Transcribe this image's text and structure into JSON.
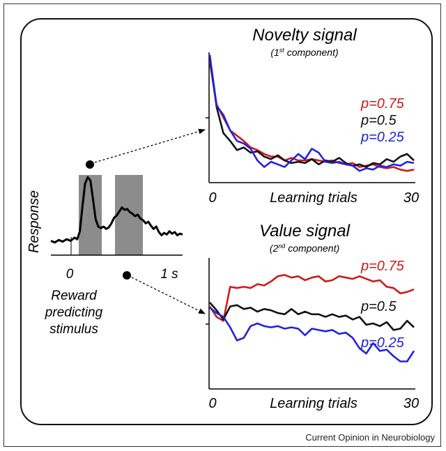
{
  "credit": "Current Opinion in Neurobiology",
  "left_plot": {
    "ylabel": "Response",
    "x_tick_start": "0",
    "x_tick_end": "1 s",
    "caption_lines": [
      "Reward",
      "predicting",
      "stimulus"
    ],
    "shade_color": "#8c8c8c",
    "trace": [
      [
        0.0,
        0.18
      ],
      [
        0.03,
        0.16
      ],
      [
        0.06,
        0.19
      ],
      [
        0.09,
        0.17
      ],
      [
        0.12,
        0.2
      ],
      [
        0.15,
        0.18
      ],
      [
        0.18,
        0.22
      ],
      [
        0.2,
        0.2
      ],
      [
        0.22,
        0.3
      ],
      [
        0.24,
        0.62
      ],
      [
        0.26,
        0.9
      ],
      [
        0.28,
        0.98
      ],
      [
        0.3,
        0.94
      ],
      [
        0.32,
        0.7
      ],
      [
        0.34,
        0.45
      ],
      [
        0.36,
        0.36
      ],
      [
        0.38,
        0.34
      ],
      [
        0.4,
        0.36
      ],
      [
        0.42,
        0.33
      ],
      [
        0.44,
        0.35
      ],
      [
        0.46,
        0.4
      ],
      [
        0.48,
        0.47
      ],
      [
        0.5,
        0.5
      ],
      [
        0.52,
        0.55
      ],
      [
        0.54,
        0.6
      ],
      [
        0.56,
        0.57
      ],
      [
        0.58,
        0.58
      ],
      [
        0.6,
        0.54
      ],
      [
        0.62,
        0.52
      ],
      [
        0.64,
        0.49
      ],
      [
        0.66,
        0.51
      ],
      [
        0.68,
        0.46
      ],
      [
        0.7,
        0.44
      ],
      [
        0.72,
        0.4
      ],
      [
        0.74,
        0.42
      ],
      [
        0.76,
        0.37
      ],
      [
        0.78,
        0.33
      ],
      [
        0.8,
        0.36
      ],
      [
        0.82,
        0.29
      ],
      [
        0.84,
        0.25
      ],
      [
        0.86,
        0.28
      ],
      [
        0.88,
        0.26
      ],
      [
        0.9,
        0.3
      ],
      [
        0.92,
        0.27
      ],
      [
        0.94,
        0.29
      ],
      [
        0.96,
        0.25
      ],
      [
        0.98,
        0.27
      ],
      [
        1.0,
        0.26
      ]
    ]
  },
  "novelty": {
    "title": "Novelty signal",
    "subtitle": "(1st component)",
    "x_tick_start": "0",
    "x_tick_end": "30",
    "xlabel": "Learning trials",
    "ylim": [
      0,
      1
    ],
    "series": [
      {
        "name": "p=0.75",
        "color": "#cc1b1b",
        "values": [
          0.93,
          0.6,
          0.5,
          0.4,
          0.36,
          0.32,
          0.27,
          0.25,
          0.22,
          0.2,
          0.2,
          0.17,
          0.19,
          0.17,
          0.17,
          0.18,
          0.17,
          0.16,
          0.17,
          0.15,
          0.14,
          0.15,
          0.12,
          0.13,
          0.14,
          0.12,
          0.11,
          0.12,
          0.1,
          0.09,
          0.1
        ]
      },
      {
        "name": "p=0.5",
        "color": "#111111",
        "values": [
          0.96,
          0.58,
          0.38,
          0.32,
          0.25,
          0.27,
          0.23,
          0.24,
          0.2,
          0.18,
          0.21,
          0.17,
          0.15,
          0.16,
          0.15,
          0.18,
          0.14,
          0.17,
          0.16,
          0.19,
          0.15,
          0.13,
          0.14,
          0.12,
          0.15,
          0.14,
          0.18,
          0.16,
          0.2,
          0.22,
          0.17
        ]
      },
      {
        "name": "p=0.25",
        "color": "#2222dd",
        "values": [
          0.98,
          0.59,
          0.52,
          0.4,
          0.32,
          0.3,
          0.26,
          0.17,
          0.12,
          0.16,
          0.14,
          0.12,
          0.17,
          0.22,
          0.18,
          0.26,
          0.23,
          0.16,
          0.15,
          0.16,
          0.14,
          0.13,
          0.09,
          0.11,
          0.1,
          0.13,
          0.12,
          0.14,
          0.13,
          0.16,
          0.15
        ]
      }
    ]
  },
  "value": {
    "title": "Value signal",
    "subtitle": "(2nd component)",
    "x_tick_start": "0",
    "x_tick_end": "30",
    "xlabel": "Learning trials",
    "ylim": [
      0,
      1
    ],
    "series": [
      {
        "name": "p=0.75",
        "color": "#cc1b1b",
        "values": [
          0.63,
          0.55,
          0.52,
          0.78,
          0.77,
          0.78,
          0.77,
          0.8,
          0.79,
          0.82,
          0.86,
          0.87,
          0.85,
          0.86,
          0.83,
          0.85,
          0.86,
          0.82,
          0.83,
          0.86,
          0.85,
          0.84,
          0.86,
          0.84,
          0.82,
          0.83,
          0.78,
          0.77,
          0.73,
          0.74,
          0.76
        ]
      },
      {
        "name": "p=0.5",
        "color": "#111111",
        "values": [
          0.66,
          0.6,
          0.53,
          0.63,
          0.64,
          0.61,
          0.62,
          0.59,
          0.61,
          0.6,
          0.58,
          0.57,
          0.61,
          0.57,
          0.59,
          0.57,
          0.57,
          0.55,
          0.57,
          0.55,
          0.56,
          0.53,
          0.55,
          0.49,
          0.5,
          0.48,
          0.51,
          0.45,
          0.46,
          0.52,
          0.47
        ]
      },
      {
        "name": "p=0.25",
        "color": "#2222dd",
        "values": [
          0.62,
          0.58,
          0.55,
          0.47,
          0.37,
          0.39,
          0.48,
          0.5,
          0.48,
          0.47,
          0.48,
          0.46,
          0.47,
          0.46,
          0.41,
          0.46,
          0.45,
          0.44,
          0.45,
          0.42,
          0.43,
          0.39,
          0.31,
          0.27,
          0.35,
          0.29,
          0.3,
          0.25,
          0.21,
          0.21,
          0.29
        ]
      }
    ]
  }
}
